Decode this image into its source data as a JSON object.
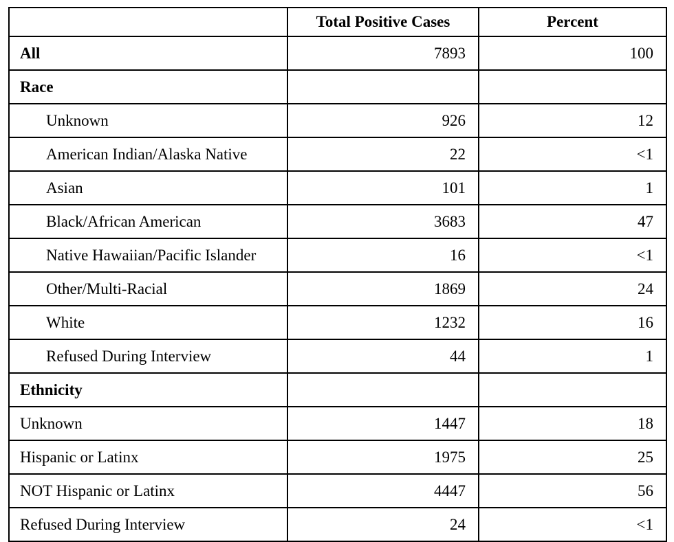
{
  "table": {
    "columns": [
      "",
      "Total Positive Cases",
      "Percent"
    ],
    "rows": [
      {
        "label": "All",
        "cases": "7893",
        "percent": "100"
      },
      {
        "label": "Race",
        "cases": "",
        "percent": ""
      },
      {
        "label": "Unknown",
        "cases": "926",
        "percent": "12"
      },
      {
        "label": "American Indian/Alaska Native",
        "cases": "22",
        "percent": "<1"
      },
      {
        "label": "Asian",
        "cases": "101",
        "percent": "1"
      },
      {
        "label": "Black/African American",
        "cases": "3683",
        "percent": "47"
      },
      {
        "label": "Native Hawaiian/Pacific Islander",
        "cases": "16",
        "percent": "<1"
      },
      {
        "label": "Other/Multi-Racial",
        "cases": "1869",
        "percent": "24"
      },
      {
        "label": "White",
        "cases": "1232",
        "percent": "16"
      },
      {
        "label": "Refused During Interview",
        "cases": "44",
        "percent": "1"
      },
      {
        "label": "Ethnicity",
        "cases": "",
        "percent": ""
      },
      {
        "label": "Unknown",
        "cases": "1447",
        "percent": "18"
      },
      {
        "label": "Hispanic or Latinx",
        "cases": "1975",
        "percent": "25"
      },
      {
        "label": "NOT Hispanic or Latinx",
        "cases": "4447",
        "percent": "56"
      },
      {
        "label": "Refused During Interview",
        "cases": "24",
        "percent": "<1"
      }
    ]
  },
  "colors": {
    "border": "#000000",
    "background": "#ffffff",
    "text": "#000000"
  }
}
